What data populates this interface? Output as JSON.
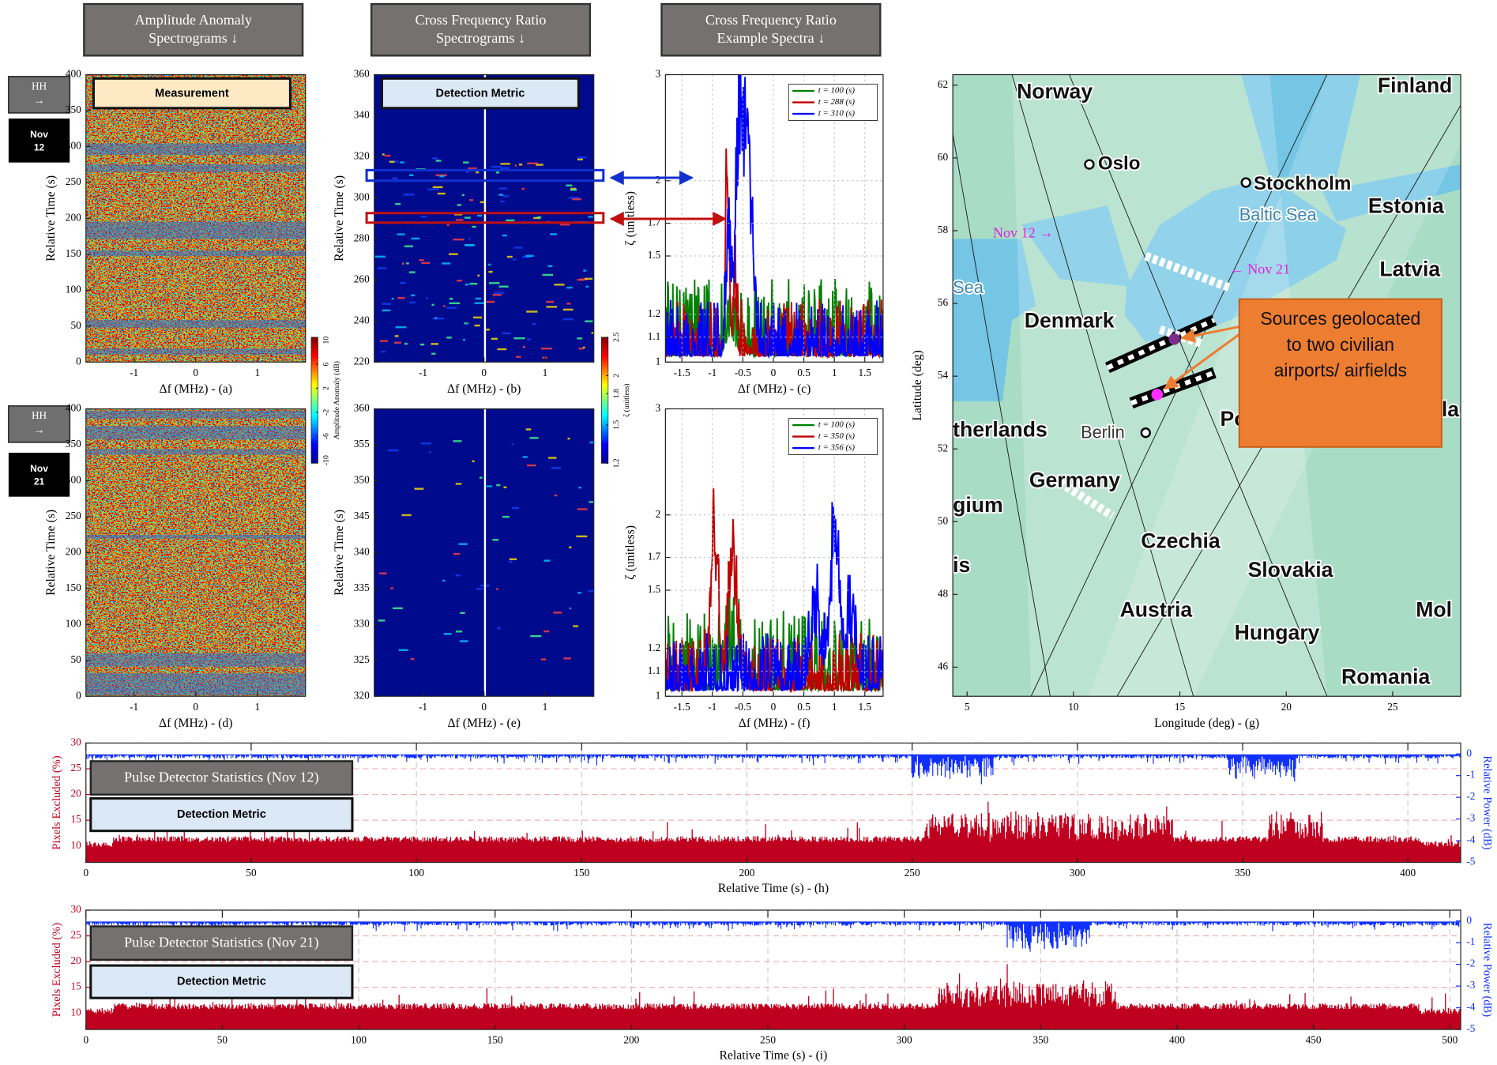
{
  "headers": [
    [
      "Amplitude Anomaly",
      "Spectrograms ↓"
    ],
    [
      "Cross Frequency Ratio",
      "Spectrograms ↓"
    ],
    [
      "Cross Frequency Ratio",
      "Example Spectra ↓"
    ]
  ],
  "rows": [
    {
      "pol": "HH",
      "arrow": "→",
      "month": "Nov",
      "day": "12"
    },
    {
      "pol": "HH",
      "arrow": "→",
      "month": "Nov",
      "day": "21"
    }
  ],
  "panels": [
    {
      "xlabel": "Δf (MHz) - (a)",
      "ylabel": "Relative Time (s)",
      "xlim": [
        -1.78,
        1.78
      ],
      "ylim": [
        0,
        400
      ],
      "xticks": [
        -1,
        0,
        1
      ],
      "yticks": [
        0,
        50,
        100,
        150,
        200,
        250,
        300,
        350,
        400
      ],
      "inset": "Measurement"
    },
    {
      "xlabel": "Δf (MHz) - (b)",
      "ylabel": "Relative Time (s)",
      "xlim": [
        -1.8,
        1.8
      ],
      "ylim": [
        220,
        360
      ],
      "xticks": [
        -1,
        0,
        1
      ],
      "yticks": [
        220,
        240,
        260,
        280,
        300,
        320,
        340,
        360
      ],
      "inset": "Detection Metric"
    },
    {
      "xlabel": "Δf (MHz) - (c)",
      "ylabel": "ζ (unitless)",
      "xlim": [
        -1.77,
        1.8
      ],
      "ylim": [
        1,
        3
      ],
      "yscale": "log",
      "grid": true,
      "xticks": [
        -1.5,
        -1,
        -0.5,
        0,
        0.5,
        1,
        1.5
      ],
      "yticks": [
        1,
        1.1,
        1.2,
        1.5,
        1.7,
        2,
        3
      ],
      "legend": [
        {
          "name": "t = 100 (s)",
          "color": "#008000"
        },
        {
          "name": "t = 288 (s)",
          "color": "#c00000"
        },
        {
          "name": "t = 310 (s)",
          "color": "#0000ff"
        }
      ]
    },
    {
      "xlabel": "Δf (MHz) - (d)",
      "ylabel": "Relative Time (s)",
      "xlim": [
        -1.78,
        1.78
      ],
      "ylim": [
        0,
        400
      ],
      "xticks": [
        -1,
        0,
        1
      ],
      "yticks": [
        0,
        50,
        100,
        150,
        200,
        250,
        300,
        350,
        400
      ]
    },
    {
      "xlabel": "Δf (MHz) - (e)",
      "ylabel": "Relative Time (s)",
      "xlim": [
        -1.8,
        1.8
      ],
      "ylim": [
        320,
        360
      ],
      "xticks": [
        -1,
        0,
        1
      ],
      "yticks": [
        320,
        325,
        330,
        335,
        340,
        345,
        350,
        355,
        360
      ]
    },
    {
      "xlabel": "Δf (MHz) - (f)",
      "ylabel": "ζ (unitless)",
      "xlim": [
        -1.77,
        1.8
      ],
      "ylim": [
        1,
        3
      ],
      "yscale": "log",
      "grid": true,
      "xticks": [
        -1.5,
        -1,
        -0.5,
        0,
        0.5,
        1,
        1.5
      ],
      "yticks": [
        1,
        1.1,
        1.2,
        1.5,
        1.7,
        2,
        3
      ],
      "legend": [
        {
          "name": "t = 100 (s)",
          "color": "#008000"
        },
        {
          "name": "t = 350 (s)",
          "color": "#c00000"
        },
        {
          "name": "t = 356 (s)",
          "color": "#0000ff"
        }
      ]
    }
  ],
  "colorbars": [
    {
      "label": "Amplitude Anomaly (dB)",
      "lim": [
        -10.5,
        10.5
      ],
      "ticks": [
        -10,
        -6,
        -2,
        2,
        6,
        10
      ]
    },
    {
      "label": "ζ (unitless)",
      "lim": [
        1.2,
        2.5
      ],
      "scale": "log",
      "ticks": [
        1.2,
        1.5,
        1.8,
        2,
        2.5
      ]
    }
  ],
  "map": {
    "xlabel": "Longitude (deg) - (g)",
    "ylabel": "Latitude (deg)",
    "xlim": [
      4.33,
      28.2
    ],
    "ylim": [
      45.2,
      62.29
    ],
    "xticks": [
      5,
      10,
      15,
      20,
      25
    ],
    "yticks": [
      46,
      48,
      50,
      52,
      54,
      56,
      58,
      60,
      62
    ],
    "labels": [
      "Norway",
      "Finland",
      "Oslo",
      "Stockholm",
      "Estonia",
      "Baltic Sea",
      "Nov 12 →",
      "← Nov 21",
      "Latvia",
      "Sea",
      "Denmark",
      "therlands",
      "Berlin",
      "Po",
      "la",
      "Germany",
      "gium",
      "Czechia",
      "is",
      "Slovakia",
      "Austria",
      "Hungary",
      "Mol",
      "Romania"
    ],
    "annotation": [
      "Sources geolocated",
      "to two civilian",
      "airports/ airfields"
    ]
  },
  "timeseries": [
    {
      "title": "Pulse Detector Statistics (Nov 12)",
      "inset": "Detection Metric",
      "xlabel": "Relative Time (s) - (h)",
      "ylabel": "Pixels Excluded (%)",
      "y2label": "Relative Power (dB)",
      "xlim": [
        0,
        416
      ],
      "xticks": [
        0,
        50,
        100,
        150,
        200,
        250,
        300,
        350,
        400
      ],
      "ylim": [
        6.8,
        30
      ],
      "yticks": [
        10,
        15,
        20,
        25,
        30
      ],
      "y2lim": [
        -5,
        0.5
      ],
      "y2ticks": [
        0,
        -1,
        -2,
        -3,
        -4,
        -5
      ],
      "grid": true
    },
    {
      "title": "Pulse Detector Statistics (Nov 21)",
      "inset": "Detection Metric",
      "xlabel": "Relative Time (s) - (i)",
      "ylabel": "Pixels Excluded (%)",
      "y2label": "Relative Power (dB)",
      "xlim": [
        0,
        504
      ],
      "xticks": [
        0,
        50,
        100,
        150,
        200,
        250,
        300,
        350,
        400,
        450,
        500
      ],
      "ylim": [
        6.8,
        30
      ],
      "yticks": [
        10,
        15,
        20,
        25,
        30
      ],
      "y2lim": [
        -5,
        0.5
      ],
      "y2ticks": [
        0,
        -1,
        -2,
        -3,
        -4,
        -5
      ],
      "grid": true
    }
  ]
}
